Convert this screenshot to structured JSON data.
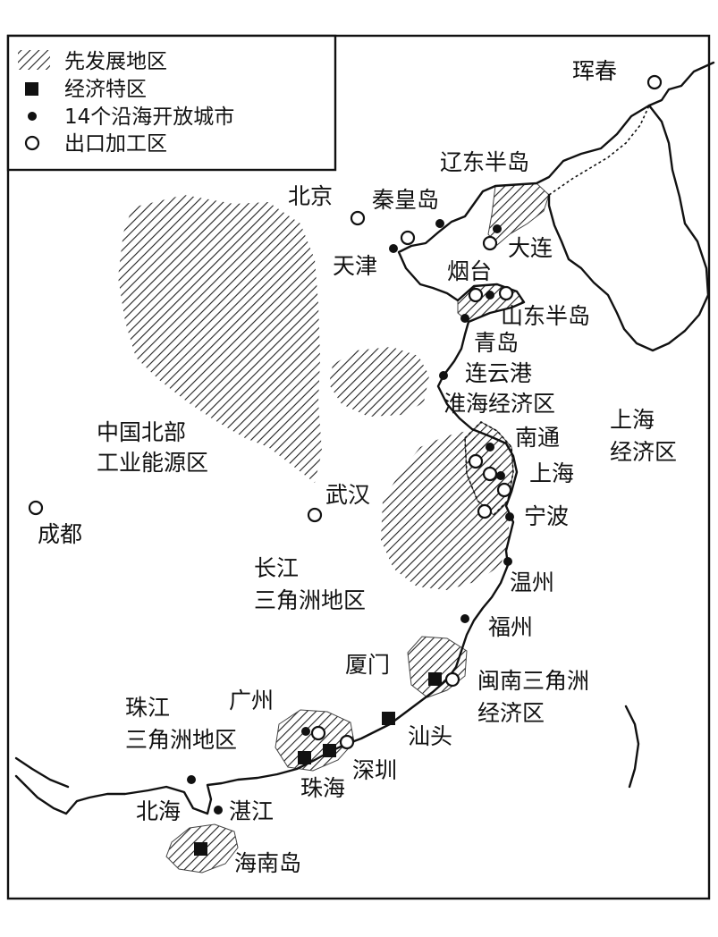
{
  "legend": {
    "items": [
      {
        "symbol": "hatch",
        "label": "先发展地区"
      },
      {
        "symbol": "square",
        "label": "经济特区"
      },
      {
        "symbol": "dot",
        "label": "14个沿海开放城市"
      },
      {
        "symbol": "circle",
        "label": "出口加工区"
      }
    ]
  },
  "regions": {
    "north_industry": "中国北部\n工业能源区",
    "liaodong": "辽东半岛",
    "shandong": "山东半岛",
    "huaihai": "淮海经济区",
    "shanghai_zone": "上海\n经济区",
    "yangtze": "长江\n三角洲地区",
    "minnan": "闽南三角洲\n经济区",
    "pearl": "珠江\n三角洲地区",
    "hainan": "海南岛"
  },
  "cities": {
    "hunchun": "珲春",
    "beijing": "北京",
    "qinhuangdao": "秦皇岛",
    "tianjin": "天津",
    "dalian": "大连",
    "yantai": "烟台",
    "qingdao": "青岛",
    "lianyungang": "连云港",
    "nantong": "南通",
    "shanghai": "上海",
    "ningbo": "宁波",
    "wenzhou": "温州",
    "fuzhou": "福州",
    "xiamen": "厦门",
    "shantou": "汕头",
    "guangzhou": "广州",
    "shenzhen": "深圳",
    "zhuhai": "珠海",
    "zhanjiang": "湛江",
    "beihai": "北海",
    "wuhan": "武汉",
    "chengdu": "成都"
  }
}
